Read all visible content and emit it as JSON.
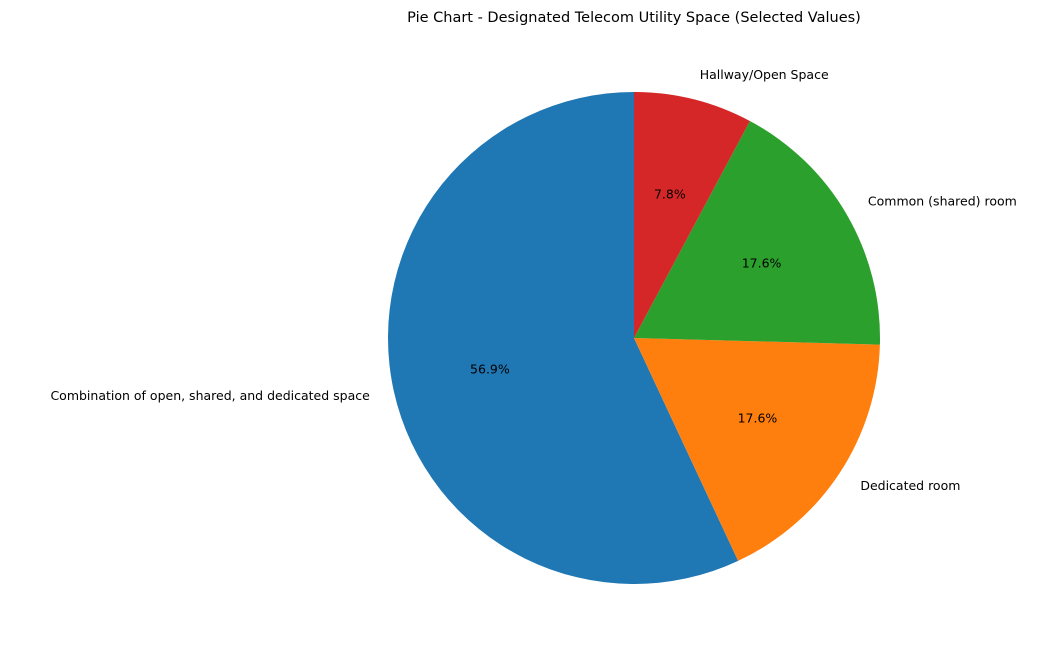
{
  "chart_data": {
    "type": "pie",
    "title": "Pie Chart - Designated Telecom Utility Space (Selected Values)",
    "slices": [
      {
        "label": "Combination of open, shared, and dedicated  space",
        "percent": 56.9,
        "color": "#1f77b4"
      },
      {
        "label": "Dedicated room",
        "percent": 17.6,
        "color": "#ff7f0e"
      },
      {
        "label": "Common (shared) room",
        "percent": 17.6,
        "color": "#2ca02c"
      },
      {
        "label": "Hallway/Open Space",
        "percent": 7.8,
        "color": "#d62728"
      }
    ],
    "start_angle": 90,
    "direction": "counterclockwise",
    "legend": "none"
  }
}
